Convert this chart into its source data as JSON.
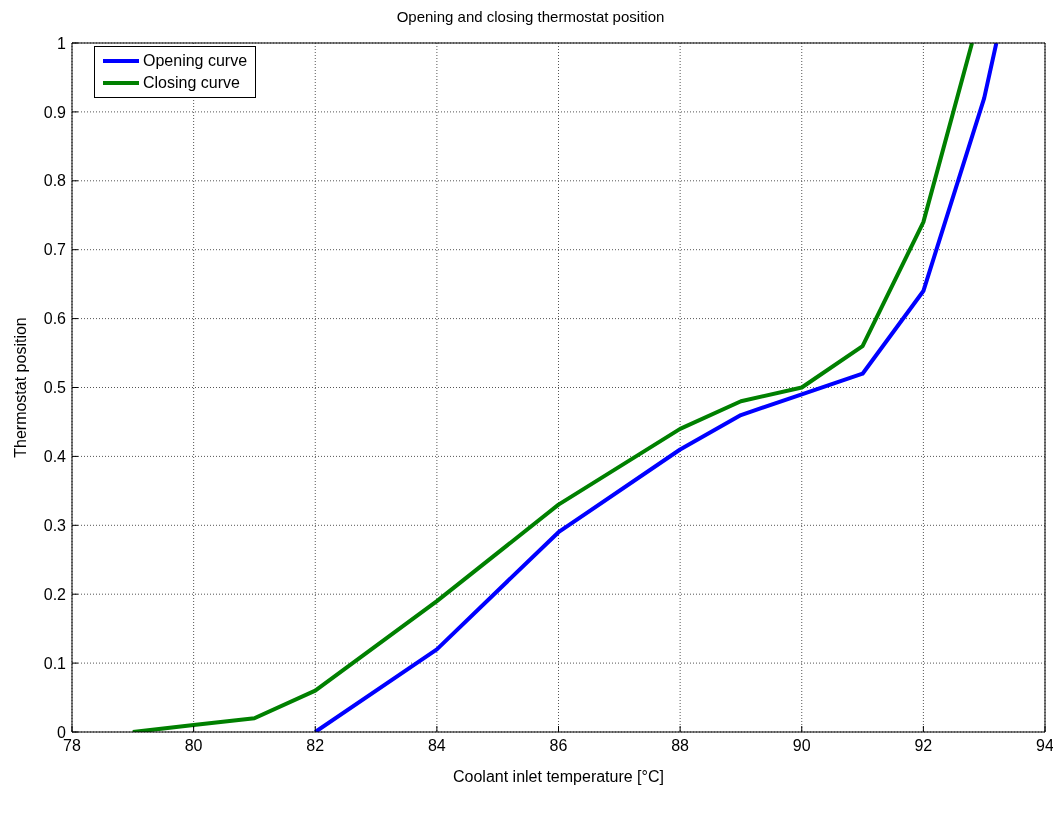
{
  "chart_data": {
    "type": "line",
    "title": "Opening and closing thermostat position",
    "xlabel": "Coolant inlet temperature [°C]",
    "ylabel": "Thermostat position",
    "xlim": [
      78,
      94
    ],
    "xticks": [
      78,
      80,
      82,
      84,
      86,
      88,
      90,
      92,
      94
    ],
    "ylim": [
      0,
      1
    ],
    "yticks": [
      0,
      0.1,
      0.2,
      0.3,
      0.4,
      0.5,
      0.6,
      0.7,
      0.8,
      0.9,
      1
    ],
    "grid": true,
    "legend": "top left",
    "marker": "none",
    "line_style": "solid",
    "series": [
      {
        "name": "Opening curve",
        "color": "#0000ff",
        "x": [
          82,
          84,
          86,
          88,
          89,
          90,
          91,
          92,
          93,
          93.2
        ],
        "values": [
          0,
          0.12,
          0.29,
          0.41,
          0.46,
          0.49,
          0.52,
          0.64,
          0.92,
          1
        ]
      },
      {
        "name": "Closing curve",
        "color": "#008000",
        "x": [
          79,
          80,
          81,
          82,
          84,
          86,
          88,
          89,
          90,
          91,
          92,
          92.8
        ],
        "values": [
          0,
          0.01,
          0.02,
          0.06,
          0.19,
          0.33,
          0.44,
          0.48,
          0.5,
          0.56,
          0.74,
          1
        ]
      }
    ]
  }
}
